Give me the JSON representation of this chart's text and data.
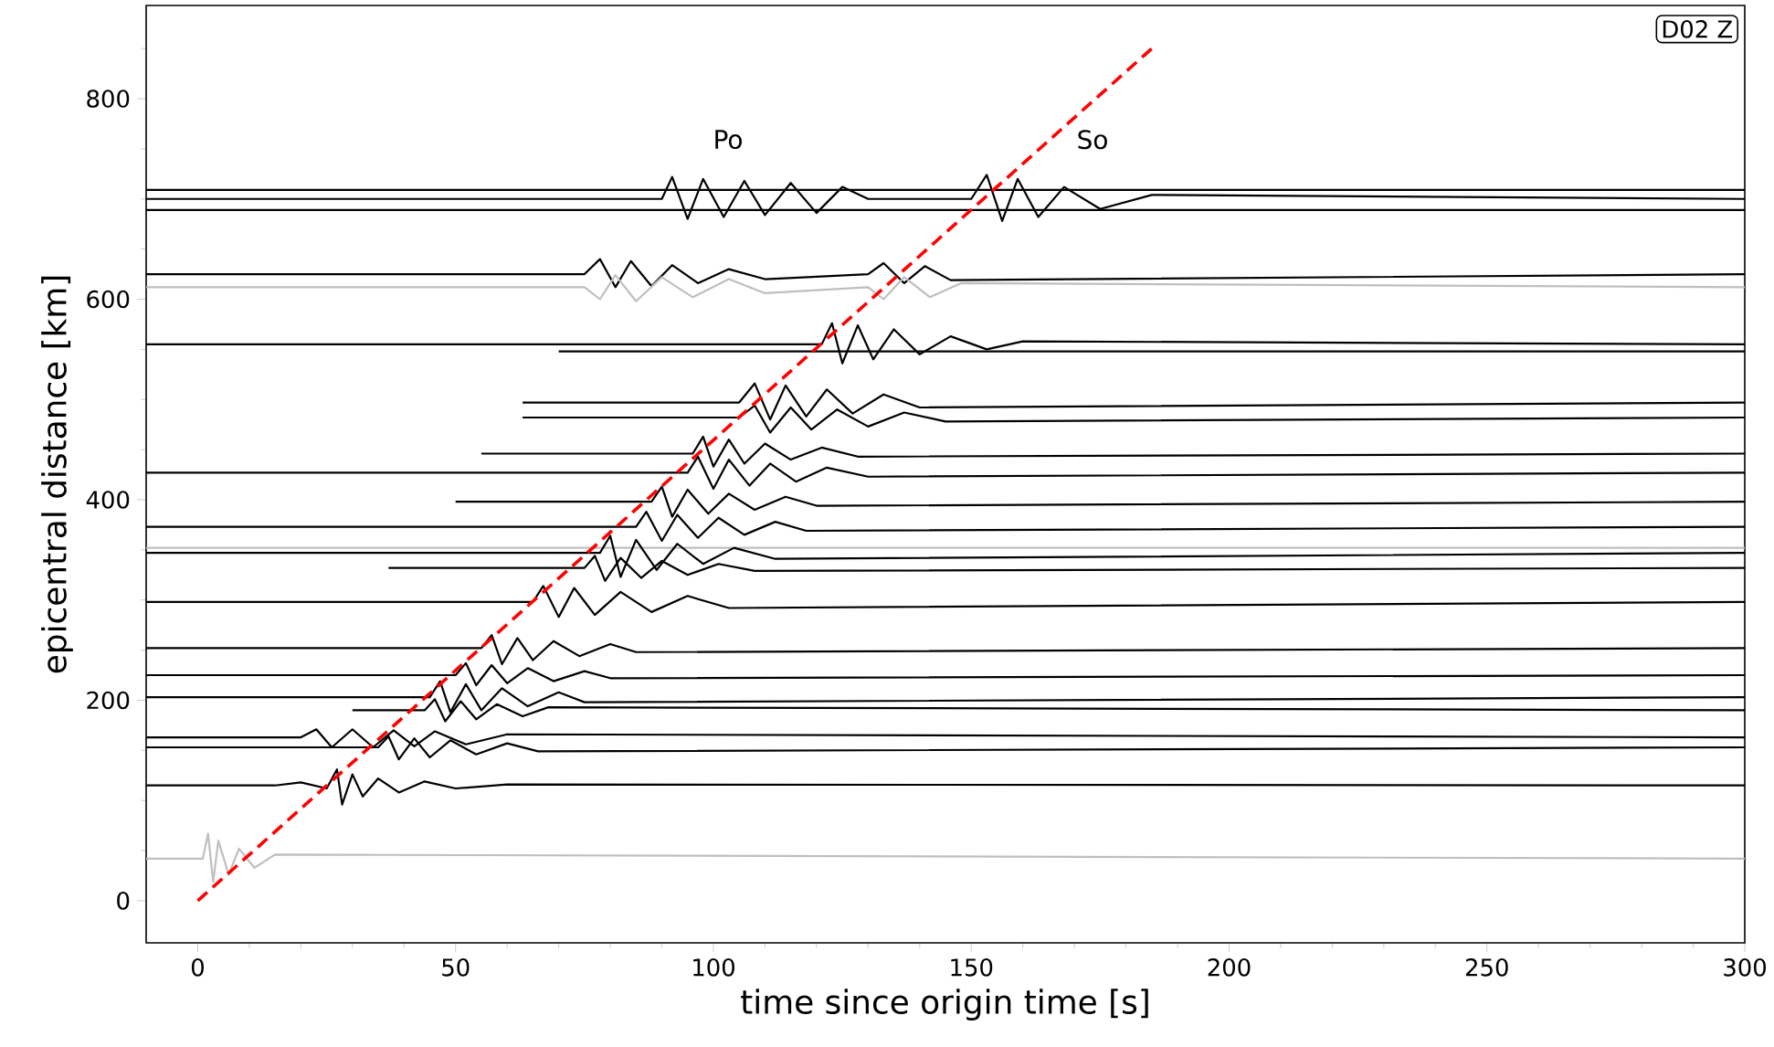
{
  "chart_data": {
    "type": "line",
    "xlabel": "time since origin time [s]",
    "ylabel": "epicentral distance [km]",
    "xlim": [
      -10,
      300
    ],
    "ylim": [
      -42,
      893
    ],
    "xticks": [
      0,
      50,
      100,
      150,
      200,
      250,
      300,
      {
        "value": 10,
        "label": null
      },
      {
        "value": 20,
        "label": null
      },
      {
        "value": 30,
        "label": null
      },
      {
        "value": 40,
        "label": null
      },
      {
        "value": 60,
        "label": null
      },
      {
        "value": 70,
        "label": null
      },
      {
        "value": 80,
        "label": null
      },
      {
        "value": 90,
        "label": null
      },
      {
        "value": 110,
        "label": null
      },
      {
        "value": 120,
        "label": null
      },
      {
        "value": 130,
        "label": null
      },
      {
        "value": 140,
        "label": null
      },
      {
        "value": 160,
        "label": null
      },
      {
        "value": 170,
        "label": null
      },
      {
        "value": 180,
        "label": null
      },
      {
        "value": 190,
        "label": null
      },
      {
        "value": 210,
        "label": null
      },
      {
        "value": 220,
        "label": null
      },
      {
        "value": 230,
        "label": null
      },
      {
        "value": 240,
        "label": null
      },
      {
        "value": 260,
        "label": null
      },
      {
        "value": 270,
        "label": null
      },
      {
        "value": 280,
        "label": null
      },
      {
        "value": 290,
        "label": null
      }
    ],
    "yticks": [
      0,
      200,
      400,
      600,
      800,
      {
        "value": 50,
        "label": null
      },
      {
        "value": 100,
        "label": null
      },
      {
        "value": 150,
        "label": null
      },
      {
        "value": 250,
        "label": null
      },
      {
        "value": 300,
        "label": null
      },
      {
        "value": 350,
        "label": null
      },
      {
        "value": 450,
        "label": null
      },
      {
        "value": 500,
        "label": null
      },
      {
        "value": 550,
        "label": null
      },
      {
        "value": 650,
        "label": null
      },
      {
        "value": 700,
        "label": null
      },
      {
        "value": 750,
        "label": null
      },
      {
        "value": 850,
        "label": null
      }
    ],
    "annotations": [
      "Po",
      "So",
      "D02 Z"
    ],
    "series": [
      {
        "color": "#000000",
        "x": [
          -10,
          300
        ],
        "values": [
          709,
          709
        ]
      },
      {
        "color": "#000000",
        "x": [
          -10,
          90,
          92,
          95,
          98,
          102,
          106,
          110,
          115,
          120,
          125,
          130,
          150,
          153,
          156,
          159,
          163,
          168,
          175,
          185,
          300
        ],
        "values": [
          700,
          700,
          722,
          680,
          720,
          682,
          718,
          684,
          716,
          686,
          712,
          700,
          700,
          724,
          678,
          720,
          682,
          712,
          690,
          704,
          700
        ]
      },
      {
        "color": "#000000",
        "x": [
          -10,
          300
        ],
        "values": [
          689,
          689
        ]
      },
      {
        "color": "#000000",
        "x": [
          -10,
          75,
          78,
          81,
          84,
          88,
          92,
          97,
          103,
          110,
          130,
          133,
          137,
          141,
          146,
          300
        ],
        "values": [
          625,
          625,
          640,
          612,
          638,
          613,
          634,
          616,
          630,
          620,
          625,
          636,
          616,
          633,
          619,
          625
        ]
      },
      {
        "color": "#bfbfbf",
        "x": [
          -10,
          75,
          78,
          81,
          85,
          90,
          96,
          103,
          110,
          130,
          133,
          137,
          142,
          148,
          300
        ],
        "values": [
          612,
          612,
          600,
          624,
          598,
          622,
          602,
          620,
          606,
          612,
          600,
          622,
          602,
          616,
          612
        ]
      },
      {
        "color": "#000000",
        "x": [
          -10,
          121,
          123,
          125,
          128,
          131,
          135,
          140,
          146,
          153,
          160,
          300
        ],
        "values": [
          555,
          555,
          576,
          536,
          574,
          540,
          570,
          545,
          563,
          550,
          558,
          555
        ]
      },
      {
        "color": "#000000",
        "x": [
          70,
          300
        ],
        "values": [
          548,
          548
        ]
      },
      {
        "color": "#000000",
        "x": [
          63,
          105,
          108,
          111,
          114,
          118,
          122,
          127,
          133,
          140,
          300
        ],
        "values": [
          497,
          497,
          516,
          480,
          514,
          483,
          510,
          486,
          505,
          492,
          497
        ]
      },
      {
        "color": "#000000",
        "x": [
          63,
          105,
          108,
          111,
          115,
          119,
          124,
          130,
          137,
          145,
          300
        ],
        "values": [
          482,
          482,
          494,
          467,
          492,
          470,
          490,
          473,
          487,
          478,
          482
        ]
      },
      {
        "color": "#000000",
        "x": [
          55,
          96,
          98,
          100,
          103,
          106,
          110,
          115,
          121,
          128,
          300
        ],
        "values": [
          446,
          446,
          463,
          433,
          460,
          436,
          456,
          440,
          452,
          443,
          446
        ]
      },
      {
        "color": "#000000",
        "x": [
          -10,
          95,
          97,
          100,
          103,
          107,
          111,
          116,
          122,
          130,
          300
        ],
        "values": [
          427,
          427,
          443,
          411,
          440,
          414,
          436,
          418,
          432,
          423,
          427
        ]
      },
      {
        "color": "#000000",
        "x": [
          50,
          88,
          90,
          92,
          95,
          99,
          103,
          108,
          114,
          120,
          300
        ],
        "values": [
          398,
          398,
          413,
          383,
          410,
          386,
          406,
          390,
          403,
          394,
          398
        ]
      },
      {
        "color": "#000000",
        "x": [
          -10,
          85,
          87,
          90,
          93,
          97,
          101,
          106,
          112,
          118,
          300
        ],
        "values": [
          373,
          373,
          388,
          359,
          385,
          362,
          382,
          365,
          378,
          369,
          373
        ]
      },
      {
        "color": "#bfbfbf",
        "x": [
          -10,
          300
        ],
        "values": [
          352,
          352
        ]
      },
      {
        "color": "#000000",
        "x": [
          -10,
          78,
          80,
          82,
          85,
          89,
          93,
          98,
          104,
          112,
          300
        ],
        "values": [
          347,
          347,
          364,
          323,
          360,
          330,
          356,
          336,
          352,
          341,
          347
        ]
      },
      {
        "color": "#000000",
        "x": [
          37,
          75,
          77,
          79,
          82,
          86,
          90,
          95,
          101,
          108,
          300
        ],
        "values": [
          332,
          332,
          344,
          319,
          342,
          322,
          339,
          325,
          336,
          329,
          332
        ]
      },
      {
        "color": "#000000",
        "x": [
          -10,
          65,
          67,
          70,
          73,
          77,
          82,
          88,
          95,
          103,
          300
        ],
        "values": [
          298,
          298,
          314,
          283,
          312,
          285,
          308,
          288,
          304,
          292,
          298
        ]
      },
      {
        "color": "#000000",
        "x": [
          -10,
          55,
          57,
          59,
          62,
          65,
          69,
          74,
          80,
          85,
          300
        ],
        "values": [
          252,
          252,
          265,
          236,
          262,
          240,
          259,
          244,
          256,
          248,
          252
        ]
      },
      {
        "color": "#000000",
        "x": [
          -10,
          50,
          52,
          54,
          57,
          60,
          64,
          69,
          75,
          80,
          300
        ],
        "values": [
          225,
          225,
          237,
          215,
          235,
          217,
          232,
          219,
          229,
          222,
          225
        ]
      },
      {
        "color": "#000000",
        "x": [
          -10,
          45,
          47,
          49,
          52,
          55,
          59,
          64,
          70,
          75,
          300
        ],
        "values": [
          203,
          203,
          219,
          188,
          216,
          190,
          212,
          194,
          208,
          198,
          203
        ]
      },
      {
        "color": "#000000",
        "x": [
          30,
          44,
          46,
          48,
          51,
          54,
          58,
          63,
          68,
          300
        ],
        "values": [
          190,
          190,
          201,
          179,
          199,
          181,
          196,
          184,
          193,
          190
        ]
      },
      {
        "color": "#000000",
        "x": [
          -10,
          20,
          23,
          26,
          30,
          34,
          38,
          42,
          46,
          52,
          60,
          300
        ],
        "values": [
          163,
          163,
          171,
          153,
          171,
          153,
          170,
          154,
          169,
          156,
          166,
          163
        ]
      },
      {
        "color": "#000000",
        "x": [
          -10,
          35,
          37,
          39,
          42,
          45,
          49,
          54,
          60,
          66,
          300
        ],
        "values": [
          153,
          153,
          164,
          141,
          162,
          143,
          160,
          146,
          157,
          149,
          153
        ]
      },
      {
        "color": "#000000",
        "x": [
          -10,
          15,
          20,
          25,
          27,
          28,
          30,
          32,
          35,
          39,
          44,
          50,
          60,
          300
        ],
        "values": [
          115,
          115,
          118,
          112,
          131,
          96,
          126,
          104,
          122,
          108,
          119,
          112,
          116,
          115
        ]
      },
      {
        "color": "#bfbfbf",
        "x": [
          -10,
          1,
          2,
          3,
          4,
          6,
          8,
          11,
          15,
          300
        ],
        "values": [
          42,
          42,
          67,
          19,
          60,
          26,
          52,
          33,
          46,
          42
        ]
      },
      {
        "type": "line",
        "color": "#ff0000",
        "line_style": "dashed",
        "x": [
          0,
          185
        ],
        "values": [
          0,
          850
        ]
      }
    ]
  }
}
